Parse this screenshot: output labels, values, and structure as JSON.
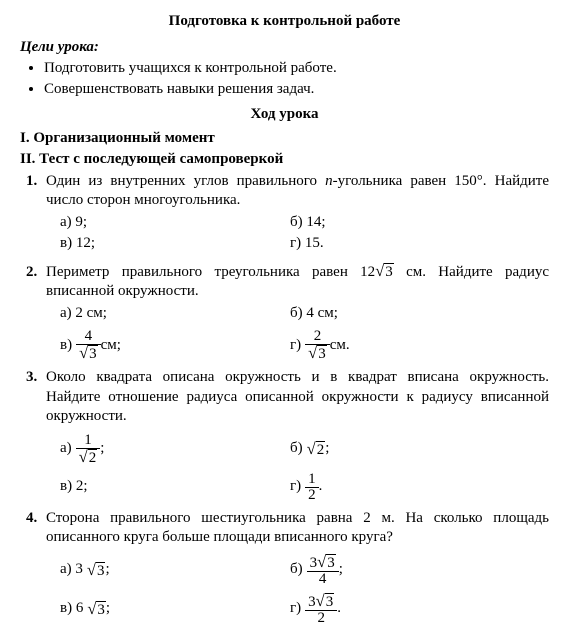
{
  "title": "Подготовка к контрольной работе",
  "goals_heading": "Цели урока:",
  "goals": [
    "Подготовить учащихся к контрольной работе.",
    "Совершенствовать навыки решения задач."
  ],
  "lesson_flow_title": "Ход урока",
  "section_I": "I. Организационный момент",
  "section_II": "II. Тест с последующей самопроверкой",
  "q1": {
    "num": "1.",
    "text_before": "Один из внутренних углов правильного ",
    "n": "n",
    "text_after": "-угольника равен 150°. Найдите число сторон многоугольника.",
    "a": "а) 9;",
    "b": "б) 14;",
    "v": "в) 12;",
    "g": "г) 15."
  },
  "q2": {
    "num": "2.",
    "text_before": "Периметр правильного треугольника равен 12",
    "sqrt3": "3",
    "text_after": " см. Найдите радиус вписанной окружности.",
    "a": "а) 2 см;",
    "b": "б) 4 см;",
    "v_label": "в) ",
    "v_num": "4",
    "v_den": "3",
    "v_after": " см;",
    "g_label": "г) ",
    "g_num": "2",
    "g_den": "3",
    "g_after": " см."
  },
  "q3": {
    "num": "3.",
    "text": "Около квадрата описана окружность и в квадрат вписана ок­ружность. Найдите отношение радиуса описанной окружности к радиусу вписанной окружности.",
    "a_label": "а) ",
    "a_num": "1",
    "a_den": "2",
    "a_after": " ;",
    "b_label": "б) ",
    "b_sqrt": "2",
    "b_after": " ;",
    "v": "в) 2;",
    "g_label": "г) ",
    "g_num": "1",
    "g_den": "2",
    "g_after": " ."
  },
  "q4": {
    "num": "4.",
    "text": "Сторона правильного шестиугольника равна 2 м. На сколько площадь описанного круга больше площади вписанного круга?",
    "a_label": "а) 3",
    "a_sqrt": "3",
    "a_after": " ;",
    "b_label": "б) ",
    "b_num_coef": "3",
    "b_num_sqrt": "3",
    "b_den": "4",
    "b_after": " ;",
    "v_label": "в) 6",
    "v_sqrt": "3",
    "v_after": " ;",
    "g_label": "г) ",
    "g_num_coef": "3",
    "g_num_sqrt": "3",
    "g_den": "2",
    "g_after": " ."
  }
}
